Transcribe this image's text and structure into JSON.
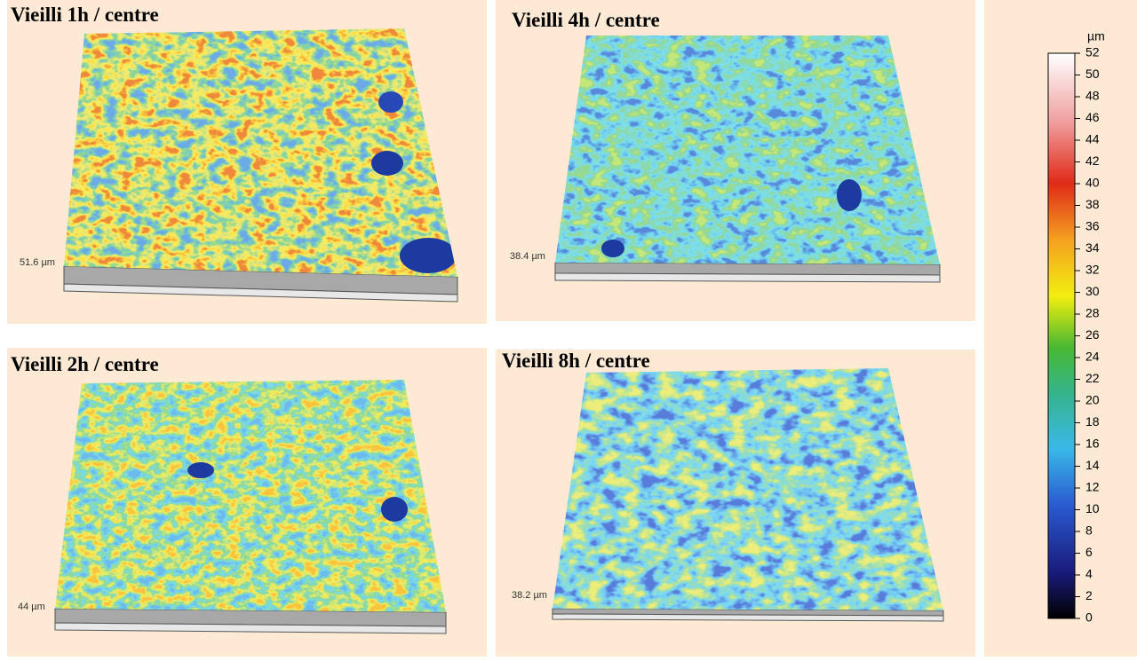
{
  "panels": [
    {
      "title": "Vieilli 1h / centre",
      "height_label": "51.6 µm"
    },
    {
      "title": "Vieilli 4h / centre",
      "height_label": "38.4 µm"
    },
    {
      "title": "Vieilli 2h / centre",
      "height_label": "44 µm"
    },
    {
      "title": "Vieilli 8h / centre",
      "height_label": "38.2 µm"
    }
  ],
  "colorbar": {
    "unit": "µm",
    "ticks": [
      0,
      2,
      4,
      6,
      8,
      10,
      12,
      14,
      16,
      18,
      20,
      22,
      24,
      26,
      28,
      30,
      32,
      34,
      36,
      38,
      40,
      42,
      44,
      46,
      48,
      50,
      52
    ]
  }
}
